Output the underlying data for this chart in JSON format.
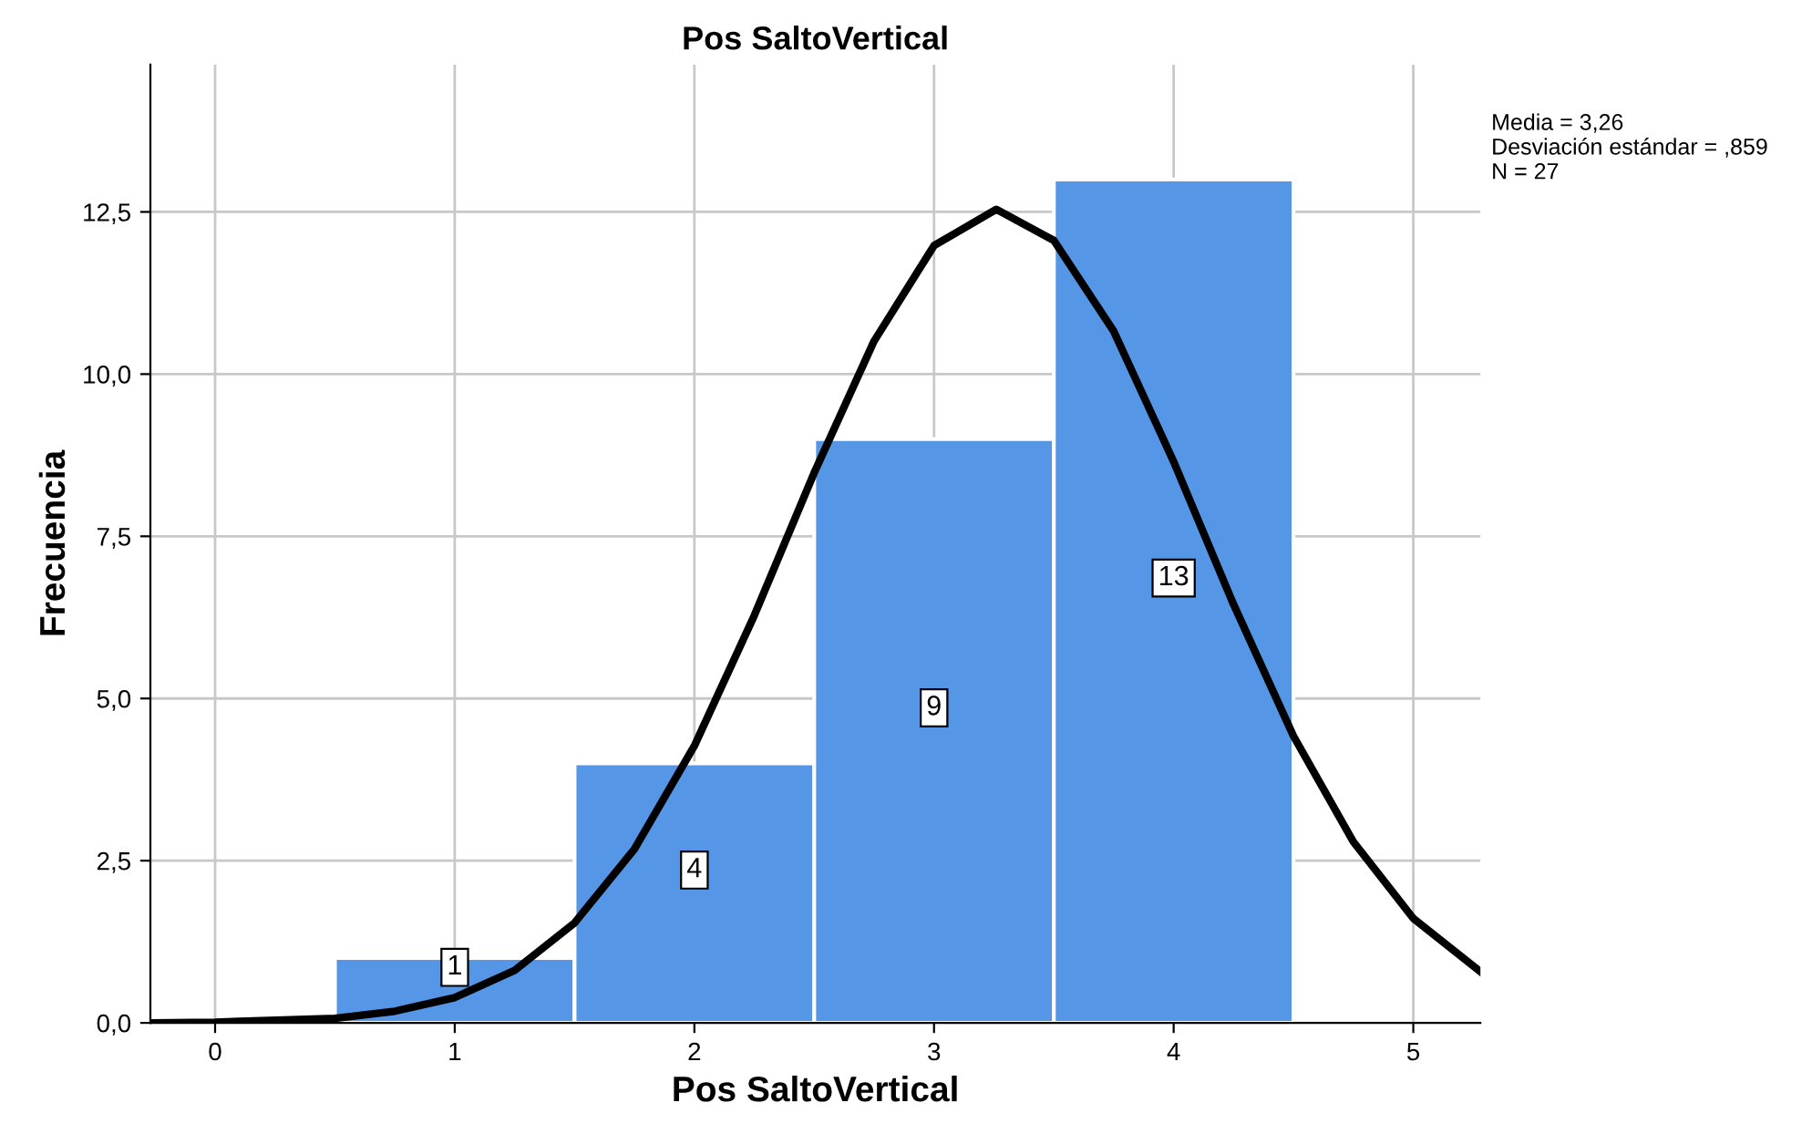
{
  "chart_data": {
    "type": "histogram",
    "title": "Pos SaltoVertical",
    "xlabel": "Pos SaltoVertical",
    "ylabel": "Frecuencia",
    "bins": [
      0.5,
      1.5,
      2.5,
      3.5,
      4.5
    ],
    "series": [
      {
        "color": "#5596e6",
        "values": [
          1,
          4,
          9,
          13
        ],
        "value_labels": [
          "1",
          "4",
          "9",
          "13"
        ]
      },
      {
        "type": "line",
        "color": "#000000",
        "x": [
          -0.27,
          0,
          0.5,
          0.75,
          1,
          1.25,
          1.5,
          1.75,
          2,
          2.25,
          2.5,
          2.75,
          3,
          3.26,
          3.5,
          3.75,
          4,
          4.25,
          4.5,
          4.75,
          5,
          5.28
        ],
        "values": [
          0.0,
          0.01,
          0.07,
          0.18,
          0.39,
          0.81,
          1.54,
          2.68,
          4.27,
          6.28,
          8.48,
          10.51,
          11.98,
          12.54,
          12.06,
          10.66,
          8.65,
          6.45,
          4.42,
          2.79,
          1.61,
          0.79
        ]
      }
    ],
    "xlim": [
      -0.27,
      5.28
    ],
    "ylim": [
      0,
      14.77
    ],
    "xticks": [
      0,
      1,
      2,
      3,
      4,
      5
    ],
    "yticks": [
      {
        "value": 0,
        "label": "0,0"
      },
      {
        "value": 2.5,
        "label": "2,5"
      },
      {
        "value": 5,
        "label": "5,0"
      },
      {
        "value": 7.5,
        "label": "7,5"
      },
      {
        "value": 10,
        "label": "10,0"
      },
      {
        "value": 12.5,
        "label": "12,5"
      }
    ],
    "grid": true,
    "annotations": [
      "Media = 3,26",
      "Desviación estándar = ,859",
      "N = 27"
    ]
  }
}
